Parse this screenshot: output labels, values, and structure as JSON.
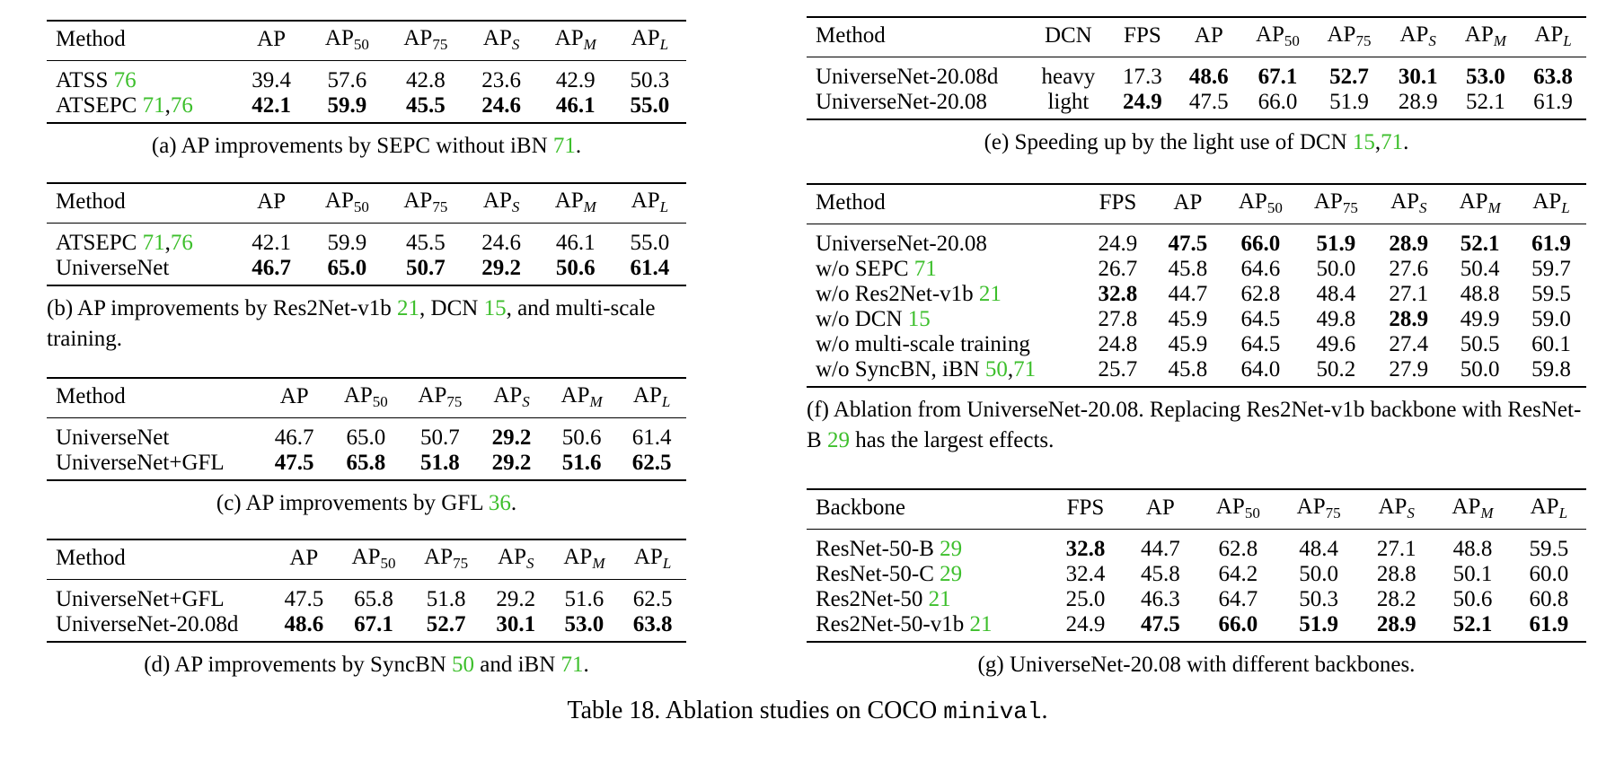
{
  "main_caption": {
    "prefix": "Table 18. Ablation studies on COCO ",
    "code": "minival",
    "suffix": "."
  },
  "colors": {
    "ref": "#3dbf2c"
  },
  "tables": [
    {
      "id": "a",
      "headers": [
        "Method",
        "AP",
        "AP|50",
        "AP|75",
        "AP|S*",
        "AP|M*",
        "AP|L*"
      ],
      "rows": [
        {
          "cells": [
            "ATSS [[76]]",
            "39.4",
            "57.6",
            "42.8",
            "23.6",
            "42.9",
            "50.3"
          ],
          "bold": []
        },
        {
          "cells": [
            "ATSEPC [[71]],[[76]]",
            "42.1",
            "59.9",
            "45.5",
            "24.6",
            "46.1",
            "55.0"
          ],
          "bold": [
            1,
            2,
            3,
            4,
            5,
            6
          ]
        }
      ],
      "caption": "(a) AP improvements by SEPC without iBN [[71]].",
      "caption_align": "center"
    },
    {
      "id": "b",
      "headers": [
        "Method",
        "AP",
        "AP|50",
        "AP|75",
        "AP|S*",
        "AP|M*",
        "AP|L*"
      ],
      "rows": [
        {
          "cells": [
            "ATSEPC [[71]],[[76]]",
            "42.1",
            "59.9",
            "45.5",
            "24.6",
            "46.1",
            "55.0"
          ],
          "bold": []
        },
        {
          "cells": [
            "UniverseNet",
            "46.7",
            "65.0",
            "50.7",
            "29.2",
            "50.6",
            "61.4"
          ],
          "bold": [
            1,
            2,
            3,
            4,
            5,
            6
          ]
        }
      ],
      "caption": "(b) AP improvements by Res2Net-v1b [[21]], DCN [[15]], and multi-scale training.",
      "caption_align": "left"
    },
    {
      "id": "c",
      "headers": [
        "Method",
        "AP",
        "AP|50",
        "AP|75",
        "AP|S*",
        "AP|M*",
        "AP|L*"
      ],
      "rows": [
        {
          "cells": [
            "UniverseNet",
            "46.7",
            "65.0",
            "50.7",
            "29.2",
            "50.6",
            "61.4"
          ],
          "bold": [
            4
          ]
        },
        {
          "cells": [
            "UniverseNet+GFL",
            "47.5",
            "65.8",
            "51.8",
            "29.2",
            "51.6",
            "62.5"
          ],
          "bold": [
            1,
            2,
            3,
            4,
            5,
            6
          ]
        }
      ],
      "caption": "(c) AP improvements by GFL [[36]].",
      "caption_align": "center"
    },
    {
      "id": "d",
      "headers": [
        "Method",
        "AP",
        "AP|50",
        "AP|75",
        "AP|S*",
        "AP|M*",
        "AP|L*"
      ],
      "rows": [
        {
          "cells": [
            "UniverseNet+GFL",
            "47.5",
            "65.8",
            "51.8",
            "29.2",
            "51.6",
            "62.5"
          ],
          "bold": []
        },
        {
          "cells": [
            "UniverseNet-20.08d",
            "48.6",
            "67.1",
            "52.7",
            "30.1",
            "53.0",
            "63.8"
          ],
          "bold": [
            1,
            2,
            3,
            4,
            5,
            6
          ]
        }
      ],
      "caption": "(d) AP improvements by SyncBN [[50]] and iBN [[71]].",
      "caption_align": "center"
    },
    {
      "id": "e",
      "headers": [
        "Method",
        "DCN",
        "FPS",
        "AP",
        "AP|50",
        "AP|75",
        "AP|S*",
        "AP|M*",
        "AP|L*"
      ],
      "rows": [
        {
          "cells": [
            "UniverseNet-20.08d",
            "heavy",
            "17.3",
            "48.6",
            "67.1",
            "52.7",
            "30.1",
            "53.0",
            "63.8"
          ],
          "bold": [
            3,
            4,
            5,
            6,
            7,
            8
          ]
        },
        {
          "cells": [
            "UniverseNet-20.08",
            "light",
            "24.9",
            "47.5",
            "66.0",
            "51.9",
            "28.9",
            "52.1",
            "61.9"
          ],
          "bold": [
            2
          ]
        }
      ],
      "caption": "(e) Speeding up by the light use of DCN [[15]],[[71]].",
      "caption_align": "center"
    },
    {
      "id": "f",
      "headers": [
        "Method",
        "FPS",
        "AP",
        "AP|50",
        "AP|75",
        "AP|S*",
        "AP|M*",
        "AP|L*"
      ],
      "rows": [
        {
          "cells": [
            "UniverseNet-20.08",
            "24.9",
            "47.5",
            "66.0",
            "51.9",
            "28.9",
            "52.1",
            "61.9"
          ],
          "bold": [
            2,
            3,
            4,
            5,
            6,
            7
          ]
        },
        {
          "cells": [
            "w/o SEPC [[71]]",
            "26.7",
            "45.8",
            "64.6",
            "50.0",
            "27.6",
            "50.4",
            "59.7"
          ],
          "bold": []
        },
        {
          "cells": [
            "w/o Res2Net-v1b [[21]]",
            "32.8",
            "44.7",
            "62.8",
            "48.4",
            "27.1",
            "48.8",
            "59.5"
          ],
          "bold": [
            1
          ]
        },
        {
          "cells": [
            "w/o DCN [[15]]",
            "27.8",
            "45.9",
            "64.5",
            "49.8",
            "28.9",
            "49.9",
            "59.0"
          ],
          "bold": [
            5
          ]
        },
        {
          "cells": [
            "w/o multi-scale training",
            "24.8",
            "45.9",
            "64.5",
            "49.6",
            "27.4",
            "50.5",
            "60.1"
          ],
          "bold": []
        },
        {
          "cells": [
            "w/o SyncBN, iBN [[50]],[[71]]",
            "25.7",
            "45.8",
            "64.0",
            "50.2",
            "27.9",
            "50.0",
            "59.8"
          ],
          "bold": []
        }
      ],
      "caption": "(f) Ablation from UniverseNet-20.08. Replacing Res2Net-v1b backbone with ResNet-B [[29]] has the largest effects.",
      "caption_align": "left"
    },
    {
      "id": "g",
      "headers": [
        "Backbone",
        "FPS",
        "AP",
        "AP|50",
        "AP|75",
        "AP|S*",
        "AP|M*",
        "AP|L*"
      ],
      "rows": [
        {
          "cells": [
            "ResNet-50-B [[29]]",
            "32.8",
            "44.7",
            "62.8",
            "48.4",
            "27.1",
            "48.8",
            "59.5"
          ],
          "bold": [
            1
          ]
        },
        {
          "cells": [
            "ResNet-50-C [[29]]",
            "32.4",
            "45.8",
            "64.2",
            "50.0",
            "28.8",
            "50.1",
            "60.0"
          ],
          "bold": []
        },
        {
          "cells": [
            "Res2Net-50 [[21]]",
            "25.0",
            "46.3",
            "64.7",
            "50.3",
            "28.2",
            "50.6",
            "60.8"
          ],
          "bold": []
        },
        {
          "cells": [
            "Res2Net-50-v1b [[21]]",
            "24.9",
            "47.5",
            "66.0",
            "51.9",
            "28.9",
            "52.1",
            "61.9"
          ],
          "bold": [
            2,
            3,
            4,
            5,
            6,
            7
          ]
        }
      ],
      "caption": "(g) UniverseNet-20.08 with different backbones.",
      "caption_align": "center"
    }
  ]
}
